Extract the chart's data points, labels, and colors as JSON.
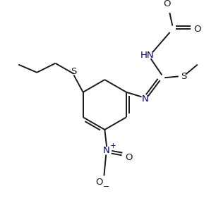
{
  "bg_color": "#ffffff",
  "line_color": "#1a1a1a",
  "n_color": "#00008B",
  "lw": 1.4,
  "dl": 0.008,
  "figsize": [
    3.06,
    2.88
  ],
  "dpi": 100,
  "xlim": [
    0,
    306
  ],
  "ylim": [
    0,
    288
  ]
}
